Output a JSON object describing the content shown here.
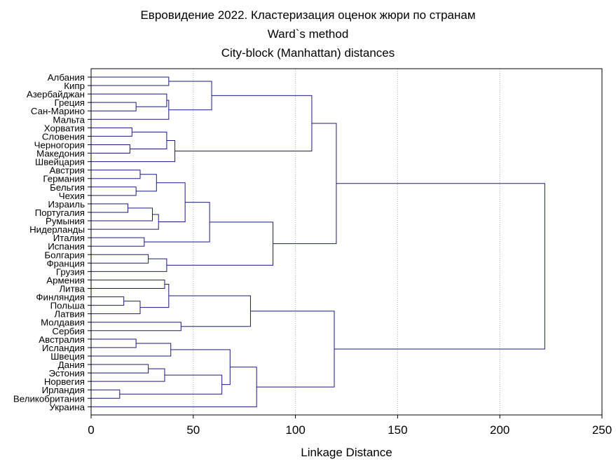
{
  "chart_data": {
    "type": "dendrogram",
    "title": "Евровидение 2022. Кластеризация оценок жюри по странам",
    "subtitle": "Ward`s method",
    "subtitle2": "City-block (Manhattan) distances",
    "xlabel": "Linkage Distance",
    "xlim": [
      0,
      250
    ],
    "xticks": [
      0,
      50,
      100,
      150,
      200,
      250
    ],
    "grid": "vertical dotted",
    "colors": {
      "line": "#1a1a7a",
      "grid": "#b0b0b0",
      "axis": "#000000"
    },
    "leaves": [
      "Албания",
      "Кипр",
      "Азербайджан",
      "Греция",
      "Сан-Марино",
      "Мальта",
      "Хорватия",
      "Словения",
      "Черногория",
      "Македония",
      "Швейцария",
      "Австрия",
      "Германия",
      "Бельгия",
      "Чехия",
      "Израиль",
      "Португалия",
      "Румыния",
      "Нидерланды",
      "Италия",
      "Испания",
      "Болгария",
      "Франция",
      "Грузия",
      "Армения",
      "Литва",
      "Финляндия",
      "Польша",
      "Латвия",
      "Молдавия",
      "Сербия",
      "Австралия",
      "Исландия",
      "Швеция",
      "Дания",
      "Эстония",
      "Норвегия",
      "Ирландия",
      "Великобритания",
      "Украина"
    ],
    "merges": [
      {
        "a": "L0",
        "b": "L1",
        "h": 38
      },
      {
        "a": "L3",
        "b": "L4",
        "h": 22
      },
      {
        "a": "L2",
        "b": "N1",
        "h": 37
      },
      {
        "a": "N2",
        "b": "L5",
        "h": 38
      },
      {
        "a": "N0",
        "b": "N3",
        "h": 59
      },
      {
        "a": "L6",
        "b": "L7",
        "h": 20
      },
      {
        "a": "L8",
        "b": "L9",
        "h": 19
      },
      {
        "a": "N5",
        "b": "N6",
        "h": 37
      },
      {
        "a": "N7",
        "b": "L10",
        "h": 41
      },
      {
        "a": "N4",
        "b": "N8",
        "h": 108
      },
      {
        "a": "L11",
        "b": "L12",
        "h": 24
      },
      {
        "a": "L13",
        "b": "L14",
        "h": 22
      },
      {
        "a": "N10",
        "b": "N11",
        "h": 32
      },
      {
        "a": "L15",
        "b": "L16",
        "h": 18
      },
      {
        "a": "N13",
        "b": "L17",
        "h": 30
      },
      {
        "a": "N14",
        "b": "L18",
        "h": 33
      },
      {
        "a": "N12",
        "b": "N15",
        "h": 46
      },
      {
        "a": "L19",
        "b": "L20",
        "h": 26
      },
      {
        "a": "N16",
        "b": "N17",
        "h": 58
      },
      {
        "a": "L21",
        "b": "L22",
        "h": 28
      },
      {
        "a": "N19",
        "b": "L23",
        "h": 37
      },
      {
        "a": "N18",
        "b": "N20",
        "h": 89
      },
      {
        "a": "N9",
        "b": "N21",
        "h": 120
      },
      {
        "a": "L24",
        "b": "L25",
        "h": 36
      },
      {
        "a": "L26",
        "b": "L27",
        "h": 16
      },
      {
        "a": "N24",
        "b": "L28",
        "h": 24
      },
      {
        "a": "N23",
        "b": "N25",
        "h": 38
      },
      {
        "a": "L29",
        "b": "L30",
        "h": 44
      },
      {
        "a": "N26",
        "b": "N27",
        "h": 78
      },
      {
        "a": "L31",
        "b": "L32",
        "h": 22
      },
      {
        "a": "N29",
        "b": "L33",
        "h": 39
      },
      {
        "a": "L34",
        "b": "L35",
        "h": 28
      },
      {
        "a": "N31",
        "b": "L36",
        "h": 36
      },
      {
        "a": "L37",
        "b": "L38",
        "h": 14
      },
      {
        "a": "N32",
        "b": "N33",
        "h": 64
      },
      {
        "a": "N30",
        "b": "N34",
        "h": 68
      },
      {
        "a": "N35",
        "b": "L39",
        "h": 81
      },
      {
        "a": "N28",
        "b": "N36",
        "h": 119
      },
      {
        "a": "N22",
        "b": "N37",
        "h": 222
      }
    ]
  }
}
